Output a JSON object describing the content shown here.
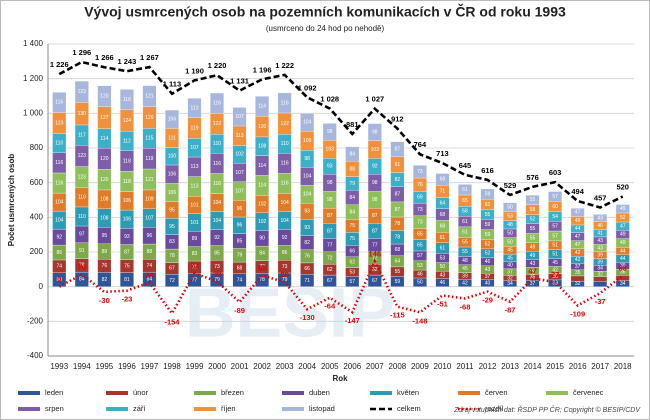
{
  "chart_data": {
    "type": "bar",
    "stacked": true,
    "title": "Vývoj usmrcených osob na pozemních komunikacích v ČR od roku 1993",
    "subtitle": "(usmrceno do 24 hod po nehodě)",
    "y_label": "Počet usmrcených osob",
    "x_label": "Rok",
    "source": "Zdroj vstupních dat: ŘSDP PP ČR; Copyright © BESIP/CDV",
    "watermark": "BESIP",
    "grid": true,
    "legend": "bottom",
    "ylim": [
      -400,
      1400
    ],
    "yticks": [
      -400,
      -200,
      0,
      200,
      400,
      600,
      800,
      {
        "value": 1000,
        "label": "1 000"
      },
      {
        "value": 1200,
        "label": "1 200"
      },
      {
        "value": 1400,
        "label": "1 400"
      }
    ],
    "categories": [
      "1993",
      "1994",
      "1995",
      "1996",
      "1997",
      "1998",
      "1999",
      "2000",
      "2001",
      "2002",
      "2003",
      "2004",
      "2005",
      "2006",
      "2007",
      "2008",
      "2009",
      "2010",
      "2011",
      "2012",
      "2013",
      "2014",
      "2015",
      "2016",
      "2017",
      "2018"
    ],
    "series": [
      {
        "name": "leden",
        "color": "#2f5597",
        "values": [
          80,
          84,
          82,
          81,
          84,
          72,
          77,
          79,
          74,
          78,
          79,
          71,
          67,
          57,
          67,
          59,
          50,
          46,
          42,
          40,
          34,
          37,
          39,
          32,
          30,
          34
        ]
      },
      {
        "name": "únor",
        "color": "#a5372f",
        "values": [
          74,
          78,
          76,
          75,
          74,
          67,
          71,
          73,
          68,
          72,
          73,
          66,
          62,
          53,
          62,
          55,
          46,
          43,
          39,
          37,
          32,
          35,
          36,
          30,
          27,
          31
        ]
      },
      {
        "name": "březen",
        "color": "#7ea94a",
        "values": [
          86,
          91,
          89,
          87,
          88,
          78,
          83,
          85,
          79,
          84,
          86,
          76,
          72,
          62,
          72,
          64,
          53,
          50,
          45,
          43,
          37,
          40,
          42,
          35,
          32,
          36
        ]
      },
      {
        "name": "duben",
        "color": "#6a4a9c",
        "values": [
          92,
          97,
          95,
          93,
          96,
          83,
          89,
          92,
          85,
          90,
          92,
          82,
          77,
          66,
          77,
          68,
          57,
          53,
          48,
          46,
          40,
          43,
          45,
          37,
          34,
          39
        ]
      },
      {
        "name": "květen",
        "color": "#2e9bb5",
        "values": [
          104,
          110,
          108,
          106,
          107,
          95,
          101,
          104,
          96,
          102,
          104,
          93,
          87,
          75,
          87,
          78,
          65,
          61,
          55,
          52,
          45,
          49,
          51,
          42,
          39,
          44
        ]
      },
      {
        "name": "červen",
        "color": "#e07b28",
        "values": [
          104,
          110,
          108,
          106,
          109,
          95,
          101,
          104,
          96,
          102,
          104,
          93,
          87,
          75,
          87,
          78,
          65,
          61,
          55,
          52,
          45,
          49,
          51,
          42,
          39,
          44
        ]
      },
      {
        "name": "červenec",
        "color": "#8fbf5a",
        "values": [
          116,
          123,
          120,
          118,
          121,
          106,
          113,
          116,
          107,
          114,
          116,
          104,
          98,
          84,
          98,
          87,
          73,
          68,
          61,
          59,
          50,
          55,
          57,
          47,
          43,
          49
        ]
      },
      {
        "name": "srpen",
        "color": "#7e5ea8",
        "values": [
          116,
          123,
          120,
          118,
          119,
          106,
          113,
          116,
          107,
          114,
          116,
          104,
          98,
          84,
          98,
          87,
          73,
          68,
          61,
          59,
          50,
          55,
          57,
          47,
          43,
          49
        ]
      },
      {
        "name": "září",
        "color": "#3cb0c8",
        "values": [
          110,
          117,
          114,
          112,
          115,
          100,
          107,
          110,
          102,
          108,
          110,
          98,
          93,
          79,
          92,
          82,
          69,
          64,
          58,
          55,
          48,
          52,
          54,
          44,
          41,
          47
        ]
      },
      {
        "name": "říjen",
        "color": "#f0913b",
        "values": [
          123,
          130,
          127,
          124,
          126,
          111,
          119,
          122,
          113,
          120,
          122,
          109,
          103,
          88,
          103,
          91,
          76,
          71,
          65,
          62,
          53,
          58,
          60,
          49,
          46,
          52
        ]
      },
      {
        "name": "listopad",
        "color": "#a7b6dd",
        "values": [
          116,
          123,
          120,
          118,
          121,
          106,
          113,
          116,
          107,
          114,
          116,
          104,
          98,
          84,
          98,
          87,
          73,
          68,
          61,
          59,
          50,
          55,
          57,
          47,
          43,
          49
        ]
      },
      {
        "name": "celkem",
        "type": "line",
        "color": "#000000",
        "dash": "6,3",
        "values": [
          1226,
          1296,
          1266,
          1243,
          1267,
          1113,
          1190,
          1220,
          1131,
          1196,
          1222,
          1092,
          1028,
          881,
          1027,
          912,
          764,
          713,
          645,
          616,
          529,
          576,
          603,
          494,
          457,
          520
        ],
        "value_labels": [
          "1 226",
          "1 296",
          "1 266",
          "1 243",
          "1 267",
          "1 113",
          "1 190",
          "1 220",
          "1 131",
          "1 196",
          "1 222",
          "1 092",
          "1 028",
          "881",
          "1 027",
          "912",
          "764",
          "713",
          "645",
          "616",
          "529",
          "576",
          "603",
          "494",
          "457",
          "520"
        ]
      },
      {
        "name": "rozdíl",
        "type": "line",
        "color": "#e00000",
        "dash": "1.5,2.5",
        "values": [
          0,
          70,
          -30,
          -23,
          24,
          -154,
          77,
          30,
          -89,
          65,
          26,
          -130,
          -64,
          -147,
          146,
          -115,
          -148,
          -51,
          -68,
          -29,
          -87,
          47,
          27,
          -109,
          -37,
          63
        ]
      }
    ]
  }
}
